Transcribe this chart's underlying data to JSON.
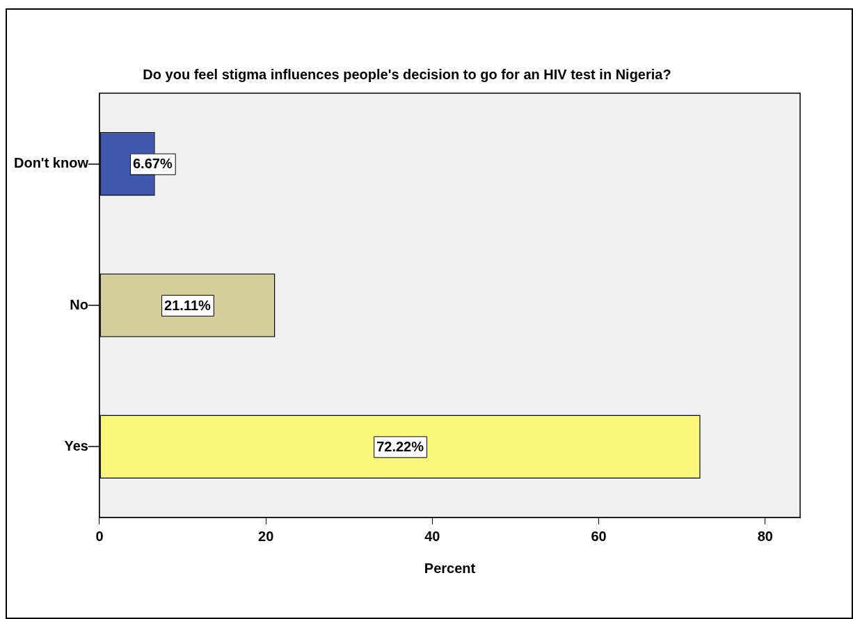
{
  "chart_data": {
    "type": "bar",
    "orientation": "horizontal",
    "title": "Do you feel stigma influences people's decision to go for an HIV test in Nigeria?",
    "xlabel": "Percent",
    "categories": [
      "Don't know",
      "No",
      "Yes"
    ],
    "values": [
      6.67,
      21.11,
      72.22
    ],
    "value_labels": [
      "6.67%",
      "21.11%",
      "72.22%"
    ],
    "colors": [
      "#3f58ad",
      "#d4cf9b",
      "#faf77a"
    ],
    "xlim": [
      0,
      84.2
    ],
    "xticks": [
      0,
      20,
      40,
      60,
      80
    ],
    "grid": false,
    "legend": false
  }
}
